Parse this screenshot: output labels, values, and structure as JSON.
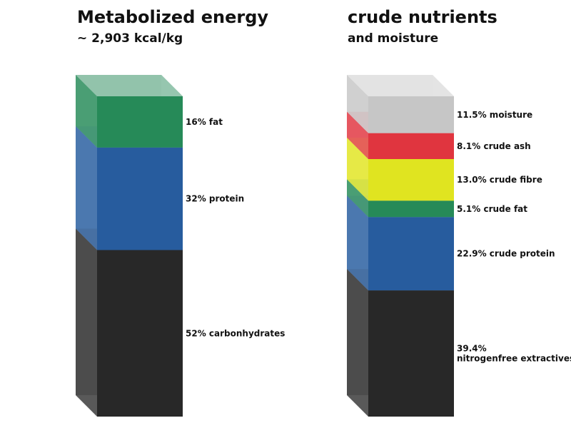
{
  "chart_data": [
    {
      "type": "stacked-3d-column",
      "title": "Metabolized energy",
      "subtitle": "~ 2,903 kcal/kg",
      "unit": "%",
      "segments": [
        {
          "label": "52% carbonhydrates",
          "value": 52,
          "color": "#282828"
        },
        {
          "label": "32% protein",
          "value": 32,
          "color": "#275c9e"
        },
        {
          "label": "16% fat",
          "value": 16,
          "color": "#268a58"
        }
      ]
    },
    {
      "type": "stacked-3d-column",
      "title": "crude nutrients",
      "subtitle": "and moisture",
      "unit": "%",
      "segments": [
        {
          "label": "39.4% nitrogenfree extractives",
          "value": 39.4,
          "color": "#282828"
        },
        {
          "label": "22.9% crude protein",
          "value": 22.9,
          "color": "#275c9e"
        },
        {
          "label": "5.1% crude fat",
          "value": 5.1,
          "color": "#268a58"
        },
        {
          "label": "13.0% crude fibre",
          "value": 13.0,
          "color": "#e0e420"
        },
        {
          "label": "8.1% crude ash",
          "value": 8.1,
          "color": "#e0353f"
        },
        {
          "label": "11.5% moisture",
          "value": 11.5,
          "color": "#c6c6c6"
        }
      ]
    }
  ]
}
